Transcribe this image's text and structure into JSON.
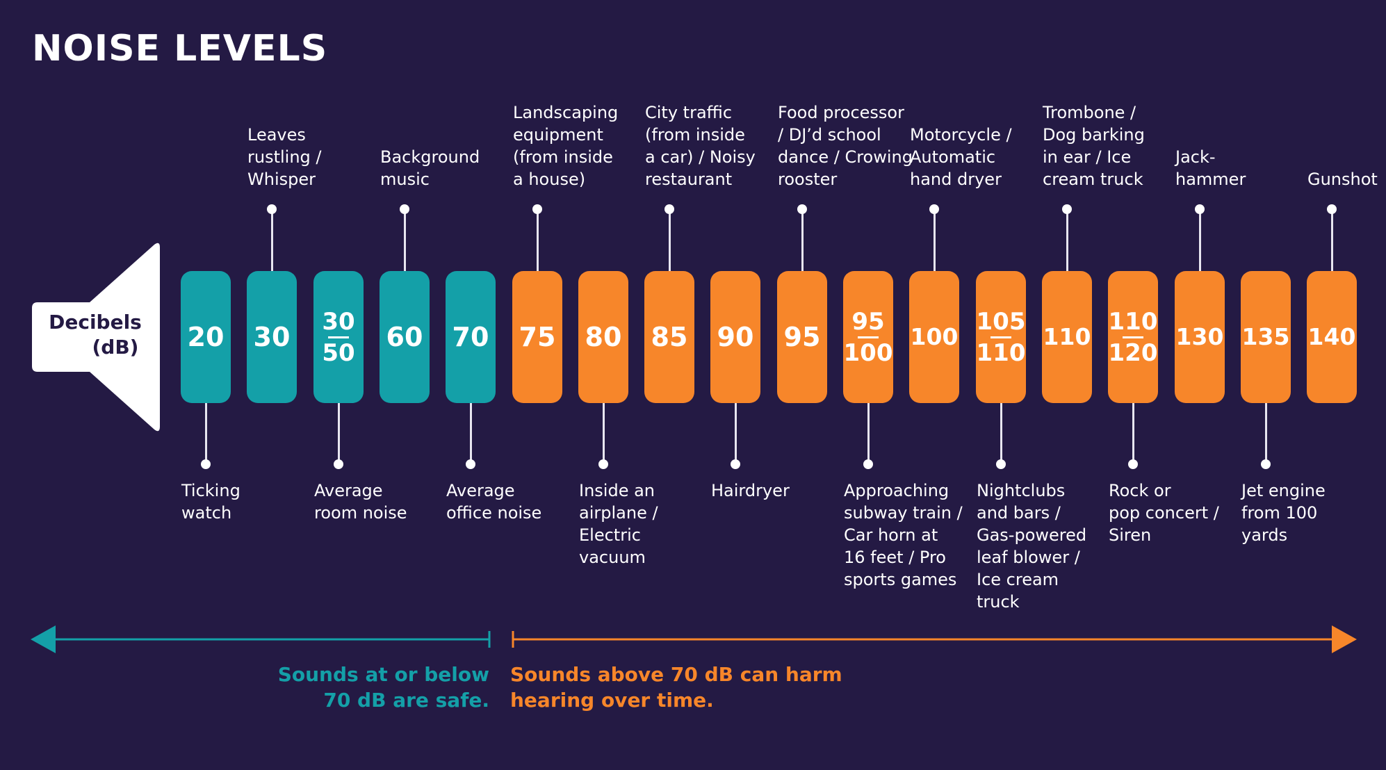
{
  "title": "NOISE LEVELS",
  "speaker": {
    "line1": "Decibels",
    "line2": "(dB)"
  },
  "colors": {
    "background": "#241a44",
    "safe": "#14a0a8",
    "harm": "#f7862a"
  },
  "levels": [
    {
      "id": "20",
      "parts": [
        "20"
      ],
      "zone": "safe",
      "label_below": "Ticking\nwatch"
    },
    {
      "id": "30",
      "parts": [
        "30"
      ],
      "zone": "safe",
      "label_above": "Leaves\nrustling /\nWhisper"
    },
    {
      "id": "30-50",
      "parts": [
        "30",
        "50"
      ],
      "zone": "safe",
      "label_below": "Average\nroom noise"
    },
    {
      "id": "60",
      "parts": [
        "60"
      ],
      "zone": "safe",
      "label_above": "Background\nmusic"
    },
    {
      "id": "70",
      "parts": [
        "70"
      ],
      "zone": "safe",
      "label_below": "Average\noffice noise"
    },
    {
      "id": "75",
      "parts": [
        "75"
      ],
      "zone": "harm",
      "label_above": "Landscaping\nequipment\n(from inside\na house)"
    },
    {
      "id": "80",
      "parts": [
        "80"
      ],
      "zone": "harm",
      "label_below": "Inside an\nairplane /\nElectric\nvacuum"
    },
    {
      "id": "85",
      "parts": [
        "85"
      ],
      "zone": "harm",
      "label_above": "City traffic\n(from inside\na car) / Noisy\nrestaurant"
    },
    {
      "id": "90",
      "parts": [
        "90"
      ],
      "zone": "harm",
      "label_below": "Hairdryer"
    },
    {
      "id": "95",
      "parts": [
        "95"
      ],
      "zone": "harm",
      "label_above": "Food processor\n/ DJ’d school\ndance / Crowing\nrooster"
    },
    {
      "id": "95-100",
      "parts": [
        "95",
        "100"
      ],
      "zone": "harm",
      "label_below": "Approaching\nsubway train /\nCar horn at\n16 feet / Pro\nsports games"
    },
    {
      "id": "100",
      "parts": [
        "100"
      ],
      "zone": "harm",
      "label_above": "Motorcycle /\nAutomatic\nhand dryer"
    },
    {
      "id": "105-110",
      "parts": [
        "105",
        "110"
      ],
      "zone": "harm",
      "label_below": "Nightclubs\nand bars /\nGas-powered\nleaf blower /\nIce cream\ntruck"
    },
    {
      "id": "110",
      "parts": [
        "110"
      ],
      "zone": "harm",
      "label_above": "Trombone /\nDog barking\nin ear / Ice\ncream truck"
    },
    {
      "id": "110-120",
      "parts": [
        "110",
        "120"
      ],
      "zone": "harm",
      "label_below": "Rock or\npop concert /\nSiren"
    },
    {
      "id": "130",
      "parts": [
        "130"
      ],
      "zone": "harm",
      "label_above": "Jack-\nhammer"
    },
    {
      "id": "135",
      "parts": [
        "135"
      ],
      "zone": "harm",
      "label_below": "Jet engine\nfrom 100\nyards"
    },
    {
      "id": "140",
      "parts": [
        "140"
      ],
      "zone": "harm",
      "label_above": "Gunshot"
    }
  ],
  "safe_caption": {
    "line1": "Sounds at or below",
    "line2": "70 dB are safe."
  },
  "harm_caption": {
    "line1": "Sounds above 70 dB can harm",
    "line2": "hearing over time."
  }
}
